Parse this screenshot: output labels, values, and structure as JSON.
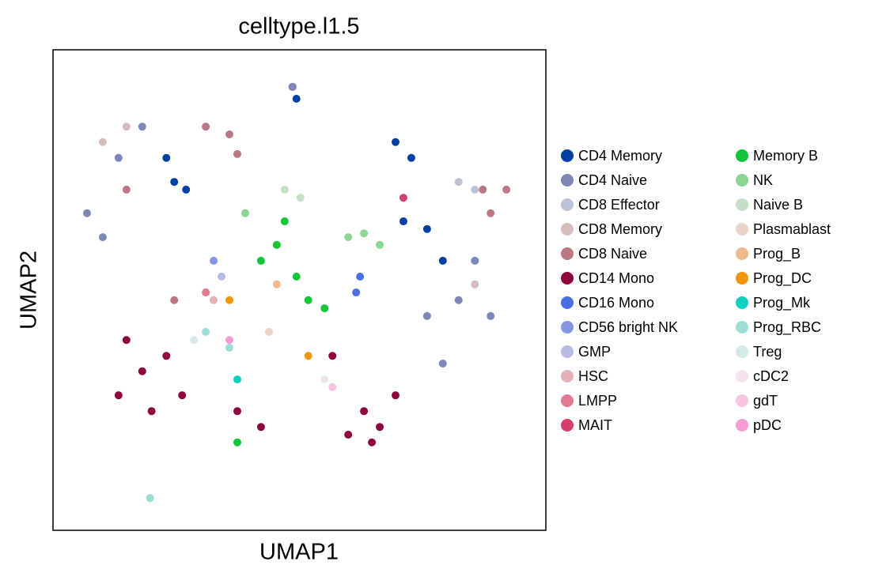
{
  "chart_data": {
    "type": "scatter",
    "title": "celltype.l1.5",
    "x_label": "UMAP1",
    "y_label": "UMAP2",
    "xlim": [
      0,
      100
    ],
    "ylim": [
      0,
      100
    ],
    "legend": "right",
    "series": [
      {
        "name": "CD4 Memory",
        "color": "#023fa5",
        "x": [
          49.4,
          48.6,
          72.7,
          69.5,
          75.9,
          79.1,
          71.1,
          27.0,
          24.6,
          23.0
        ],
        "values": [
          89.8,
          92.3,
          77.5,
          80.8,
          62.7,
          56.1,
          64.3,
          70.9,
          72.5,
          77.5
        ]
      },
      {
        "name": "CD4 Naive",
        "color": "#7d87b9",
        "x": [
          13.3,
          10.1,
          18.1,
          82.3,
          88.8,
          79.1,
          6.9,
          48.6,
          85.6,
          75.9
        ],
        "values": [
          77.5,
          61.0,
          84.0,
          47.9,
          44.6,
          34.7,
          66.0,
          92.3,
          56.1,
          44.6
        ]
      },
      {
        "name": "CD8 Effector",
        "color": "#bec1d4",
        "x": [
          82.3,
          19.7,
          31.0,
          85.6
        ],
        "values": [
          72.5,
          6.7,
          49.5,
          70.9
        ]
      },
      {
        "name": "CD8 Memory",
        "color": "#d6bcc0",
        "x": [
          10.1,
          85.6,
          14.9
        ],
        "values": [
          80.8,
          51.2,
          84.0
        ]
      },
      {
        "name": "CD8 Naive",
        "color": "#bb7784",
        "x": [
          35.8,
          87.2,
          14.9,
          92.0,
          37.4,
          24.6,
          88.8,
          31.0
        ],
        "values": [
          82.4,
          70.9,
          70.9,
          70.9,
          78.3,
          47.9,
          66.0,
          84.0
        ]
      },
      {
        "name": "CD14 Mono",
        "color": "#8e063b",
        "x": [
          18.1,
          13.3,
          23.0,
          26.2,
          14.9,
          63.1,
          69.5,
          59.9,
          64.7,
          56.7,
          37.4,
          42.2,
          20.0,
          66.3
        ],
        "values": [
          33.1,
          28.1,
          36.3,
          28.1,
          39.6,
          24.8,
          28.1,
          19.9,
          18.3,
          36.3,
          24.8,
          21.5,
          24.8,
          21.5
        ]
      },
      {
        "name": "CD16 Mono",
        "color": "#4a6fe3",
        "x": [
          62.3,
          61.5
        ],
        "values": [
          52.8,
          49.5
        ]
      },
      {
        "name": "CD56 bright NK",
        "color": "#8595e1",
        "x": [
          32.6
        ],
        "values": [
          56.1
        ]
      },
      {
        "name": "GMP",
        "color": "#b5bbe3",
        "x": [
          34.2
        ],
        "values": [
          52.8
        ]
      },
      {
        "name": "HSC",
        "color": "#e6afb9",
        "x": [
          32.6
        ],
        "values": [
          47.9
        ]
      },
      {
        "name": "LMPP",
        "color": "#e07b91",
        "x": [
          31.0
        ],
        "values": [
          49.5
        ]
      },
      {
        "name": "MAIT",
        "color": "#d33f6a",
        "x": [
          71.1
        ],
        "values": [
          69.2
        ]
      },
      {
        "name": "Memory B",
        "color": "#11c638",
        "x": [
          45.4,
          51.8,
          47.0,
          55.1,
          42.2,
          37.4,
          49.4
        ],
        "values": [
          59.4,
          47.9,
          64.3,
          46.2,
          56.1,
          18.3,
          52.8
        ]
      },
      {
        "name": "NK",
        "color": "#8dd593",
        "x": [
          63.1,
          39.0,
          66.3,
          59.9
        ],
        "values": [
          61.8,
          66.0,
          59.4,
          61.0
        ]
      },
      {
        "name": "Naive B",
        "color": "#c6dec7",
        "x": [
          50.2,
          47.0
        ],
        "values": [
          69.2,
          70.9
        ]
      },
      {
        "name": "Plasmablast",
        "color": "#ead3c6",
        "x": [
          43.8
        ],
        "values": [
          41.3
        ]
      },
      {
        "name": "Prog_B",
        "color": "#f0b98d",
        "x": [
          45.4
        ],
        "values": [
          51.2
        ]
      },
      {
        "name": "Prog_DC",
        "color": "#ef9708",
        "x": [
          51.8,
          35.8
        ],
        "values": [
          36.3,
          47.9
        ]
      },
      {
        "name": "Prog_Mk",
        "color": "#0fcfc0",
        "x": [
          37.4
        ],
        "values": [
          31.4
        ]
      },
      {
        "name": "Prog_RBC",
        "color": "#9cded6",
        "x": [
          31.0,
          35.8,
          19.7
        ],
        "values": [
          41.3,
          38.0,
          6.7
        ]
      },
      {
        "name": "Treg",
        "color": "#d5eae7",
        "x": [
          28.6
        ],
        "values": [
          39.6
        ]
      },
      {
        "name": "cDC2",
        "color": "#f3e1eb",
        "x": [
          55.1
        ],
        "values": [
          31.4
        ]
      },
      {
        "name": "gdT",
        "color": "#f6c4e1",
        "x": [
          56.7
        ],
        "values": [
          29.8
        ]
      },
      {
        "name": "pDC",
        "color": "#f79cd4",
        "x": [
          35.8
        ],
        "values": [
          39.6
        ]
      }
    ]
  }
}
